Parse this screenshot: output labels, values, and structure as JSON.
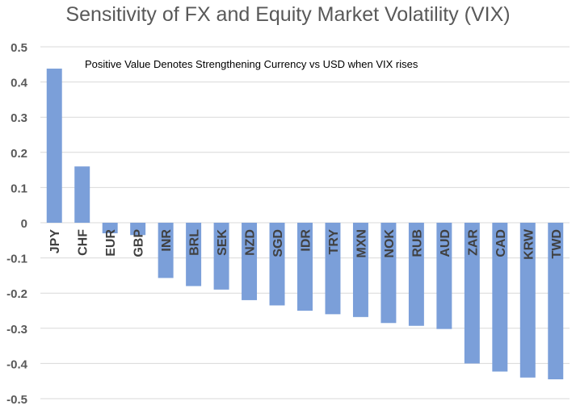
{
  "chart_data": {
    "type": "bar",
    "title": "Sensitivity of FX and Equity Market Volatility (VIX)",
    "annotation": "Positive Value Denotes Strengthening Currency vs USD when VIX rises",
    "categories": [
      "JPY",
      "CHF",
      "EUR",
      "GBP",
      "INR",
      "BRL",
      "SEK",
      "NZD",
      "SGD",
      "IDR",
      "TRY",
      "MXN",
      "NOK",
      "RUB",
      "AUD",
      "ZAR",
      "CAD",
      "KRW",
      "TWD"
    ],
    "values": [
      0.438,
      0.16,
      -0.03,
      -0.035,
      -0.157,
      -0.18,
      -0.19,
      -0.22,
      -0.235,
      -0.25,
      -0.26,
      -0.268,
      -0.285,
      -0.293,
      -0.302,
      -0.4,
      -0.423,
      -0.44,
      -0.445
    ],
    "y_ticks": [
      "0.5",
      "0.4",
      "0.3",
      "0.2",
      "0.1",
      "0",
      "-0.1",
      "-0.2",
      "-0.3",
      "-0.4",
      "-0.5"
    ],
    "ylim": [
      -0.5,
      0.5
    ],
    "xlabel": "",
    "ylabel": "",
    "grid": true,
    "bar_color": "#7b9fd9",
    "grid_color": "#d9d9d9"
  }
}
